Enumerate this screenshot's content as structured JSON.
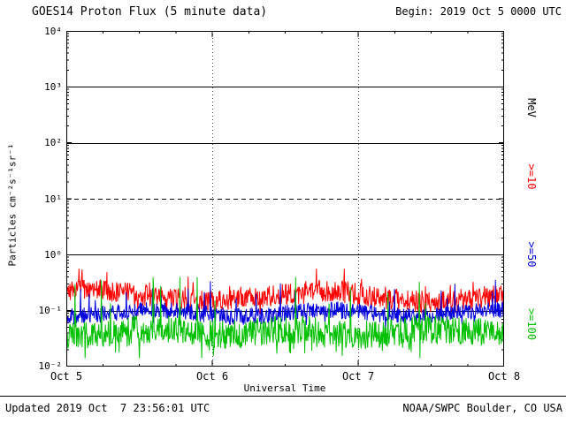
{
  "header": {
    "title": "GOES14 Proton Flux (5 minute data)",
    "begin_label": "Begin: 2019 Oct 5 0000 UTC"
  },
  "footer": {
    "updated": "Updated 2019 Oct  7 23:56:01 UTC",
    "source": "NOAA/SWPC Boulder, CO USA"
  },
  "chart_data": {
    "type": "line",
    "title": "GOES14 Proton Flux (5 minute data)",
    "xlabel": "Universal Time",
    "ylabel": "Particles cm⁻²s⁻¹sr⁻¹",
    "right_unit_label": "MeV",
    "x_ticks": [
      "Oct 5",
      "Oct 6",
      "Oct 7",
      "Oct 8"
    ],
    "y_ticks": [
      "10⁴",
      "10³",
      "10²",
      "10¹",
      "10⁰",
      "10⁻¹",
      "10⁻²"
    ],
    "ylim_log10": [
      -2,
      4
    ],
    "x_range_days": 3,
    "x_points": 864,
    "grid": {
      "hlines": [
        {
          "log10": 3,
          "style": "solid"
        },
        {
          "log10": 2,
          "style": "solid"
        },
        {
          "log10": 1,
          "style": "dashed"
        },
        {
          "log10": 0,
          "style": "solid"
        },
        {
          "log10": -1,
          "style": "solid"
        }
      ],
      "vlines": [
        {
          "label": "Oct 6",
          "frac": 0.33333
        },
        {
          "label": "Oct 7",
          "frac": 0.66667
        }
      ]
    },
    "series": [
      {
        "name": ">=10",
        "color": "#ff0000",
        "approx_mean_flux": 0.2,
        "approx_range": [
          0.08,
          0.55
        ],
        "base": 0.18,
        "noise_log10": 0.2,
        "wobble_amp": 0.1,
        "wobble_period": 70,
        "spike_prob": 0.03,
        "spike_log10": 0.3,
        "dip_prob": 0.05,
        "dip_log10": 0.2,
        "clamp_log10": [
          -1.15,
          -0.25
        ],
        "seed": 7
      },
      {
        "name": ">=50",
        "color": "#0000dd",
        "approx_mean_flux": 0.09,
        "approx_range": [
          0.04,
          0.35
        ],
        "base": 0.09,
        "noise_log10": 0.15,
        "wobble_amp": 0.06,
        "wobble_period": 55,
        "spike_prob": 0.025,
        "spike_log10": 0.35,
        "dip_prob": 0.05,
        "dip_log10": 0.15,
        "clamp_log10": [
          -1.4,
          -0.45
        ],
        "seed": 11
      },
      {
        "name": ">=100",
        "color": "#00c000",
        "approx_mean_flux": 0.045,
        "approx_range": [
          0.013,
          0.4
        ],
        "base": 0.042,
        "noise_log10": 0.26,
        "wobble_amp": 0.05,
        "wobble_period": 45,
        "spike_prob": 0.012,
        "spike_log10": 0.7,
        "dip_prob": 0.12,
        "dip_log10": 0.3,
        "clamp_log10": [
          -1.85,
          -0.4
        ],
        "seed": 23
      }
    ]
  }
}
